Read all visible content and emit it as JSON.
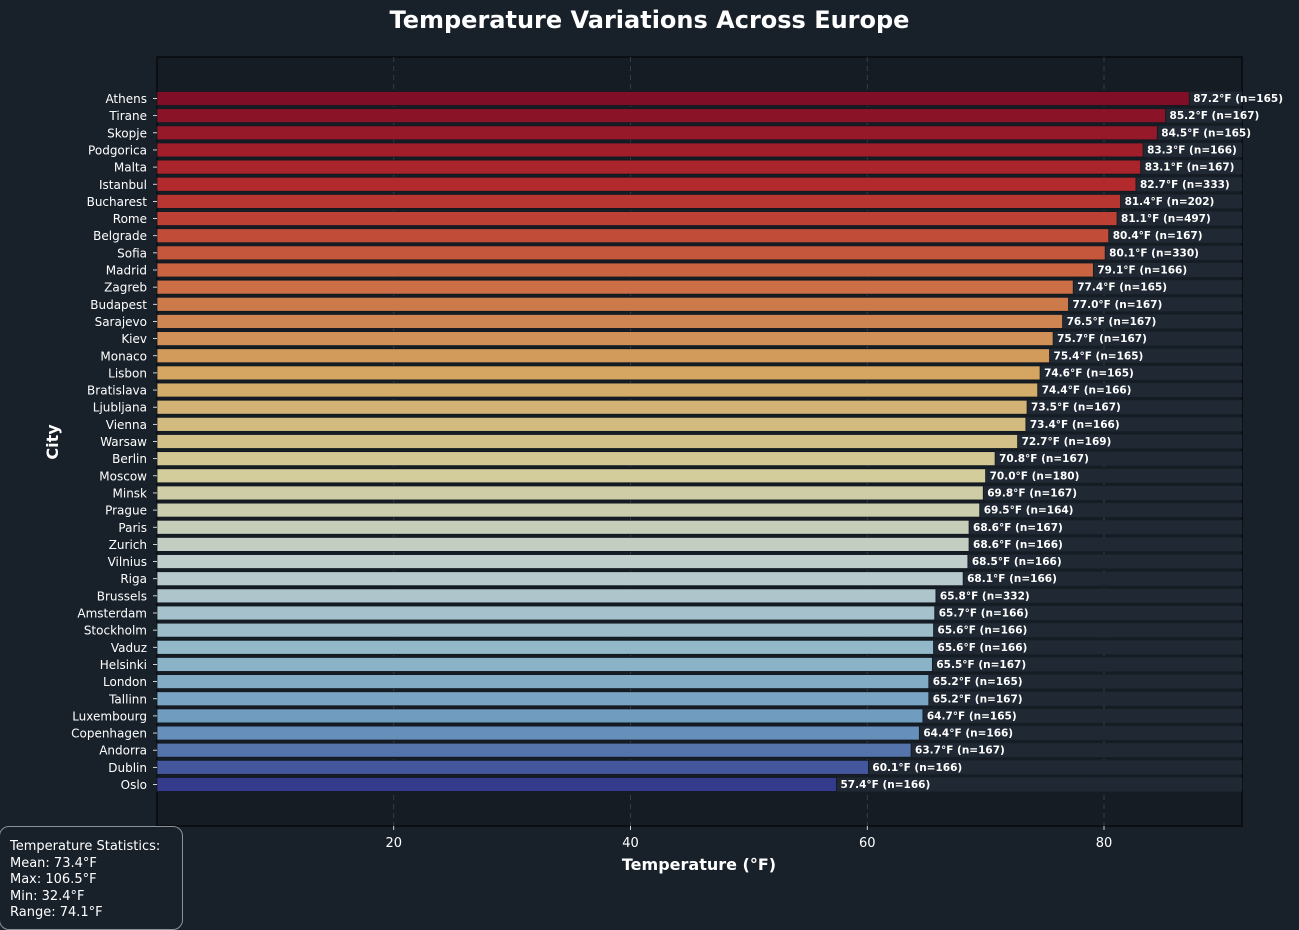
{
  "chart_data": {
    "type": "bar",
    "orientation": "horizontal",
    "title": "Temperature Variations Across Europe",
    "xlabel": "Temperature (°F)",
    "ylabel": "City",
    "xlim": [
      0,
      91.6
    ],
    "xticks": [
      20,
      40,
      60,
      80
    ],
    "grid": true,
    "categories": [
      "Athens",
      "Tirane",
      "Skopje",
      "Podgorica",
      "Malta",
      "Istanbul",
      "Bucharest",
      "Rome",
      "Belgrade",
      "Sofia",
      "Madrid",
      "Zagreb",
      "Budapest",
      "Sarajevo",
      "Kiev",
      "Monaco",
      "Lisbon",
      "Bratislava",
      "Ljubljana",
      "Vienna",
      "Warsaw",
      "Berlin",
      "Moscow",
      "Minsk",
      "Prague",
      "Paris",
      "Zurich",
      "Vilnius",
      "Riga",
      "Brussels",
      "Amsterdam",
      "Stockholm",
      "Vaduz",
      "Helsinki",
      "London",
      "Tallinn",
      "Luxembourg",
      "Copenhagen",
      "Andorra",
      "Dublin",
      "Oslo"
    ],
    "values": [
      87.2,
      85.2,
      84.5,
      83.3,
      83.1,
      82.7,
      81.4,
      81.1,
      80.4,
      80.1,
      79.1,
      77.4,
      77.0,
      76.5,
      75.7,
      75.4,
      74.6,
      74.4,
      73.5,
      73.4,
      72.7,
      70.8,
      70.0,
      69.8,
      69.5,
      68.6,
      68.6,
      68.5,
      68.1,
      65.8,
      65.7,
      65.6,
      65.6,
      65.5,
      65.2,
      65.2,
      64.7,
      64.4,
      63.7,
      60.1,
      57.4
    ],
    "labels": [
      "87.2°F (n=165)",
      "85.2°F (n=167)",
      "84.5°F (n=165)",
      "83.3°F (n=166)",
      "83.1°F (n=167)",
      "82.7°F (n=333)",
      "81.4°F (n=202)",
      "81.1°F (n=497)",
      "80.4°F (n=167)",
      "80.1°F (n=330)",
      "79.1°F (n=166)",
      "77.4°F (n=165)",
      "77.0°F (n=167)",
      "76.5°F (n=167)",
      "75.7°F (n=167)",
      "75.4°F (n=165)",
      "74.6°F (n=165)",
      "74.4°F (n=166)",
      "73.5°F (n=167)",
      "73.4°F (n=166)",
      "72.7°F (n=169)",
      "70.8°F (n=167)",
      "70.0°F (n=180)",
      "69.8°F (n=167)",
      "69.5°F (n=164)",
      "68.6°F (n=167)",
      "68.6°F (n=166)",
      "68.5°F (n=166)",
      "68.1°F (n=166)",
      "65.8°F (n=332)",
      "65.7°F (n=166)",
      "65.6°F (n=166)",
      "65.6°F (n=166)",
      "65.5°F (n=167)",
      "65.2°F (n=165)",
      "65.2°F (n=167)",
      "64.7°F (n=165)",
      "64.4°F (n=166)",
      "63.7°F (n=167)",
      "60.1°F (n=166)",
      "57.4°F (n=166)"
    ],
    "colormap": "RdYlBu (warm to cool)"
  },
  "stats": {
    "title": "Temperature Statistics:",
    "mean": "Mean: 73.4°F",
    "max": "Max: 106.5°F",
    "min": "Min: 32.4°F",
    "range": "Range: 74.1°F"
  },
  "colors": {
    "background": "#18202a",
    "plot_background": "#151c24",
    "text": "#ffffff"
  }
}
